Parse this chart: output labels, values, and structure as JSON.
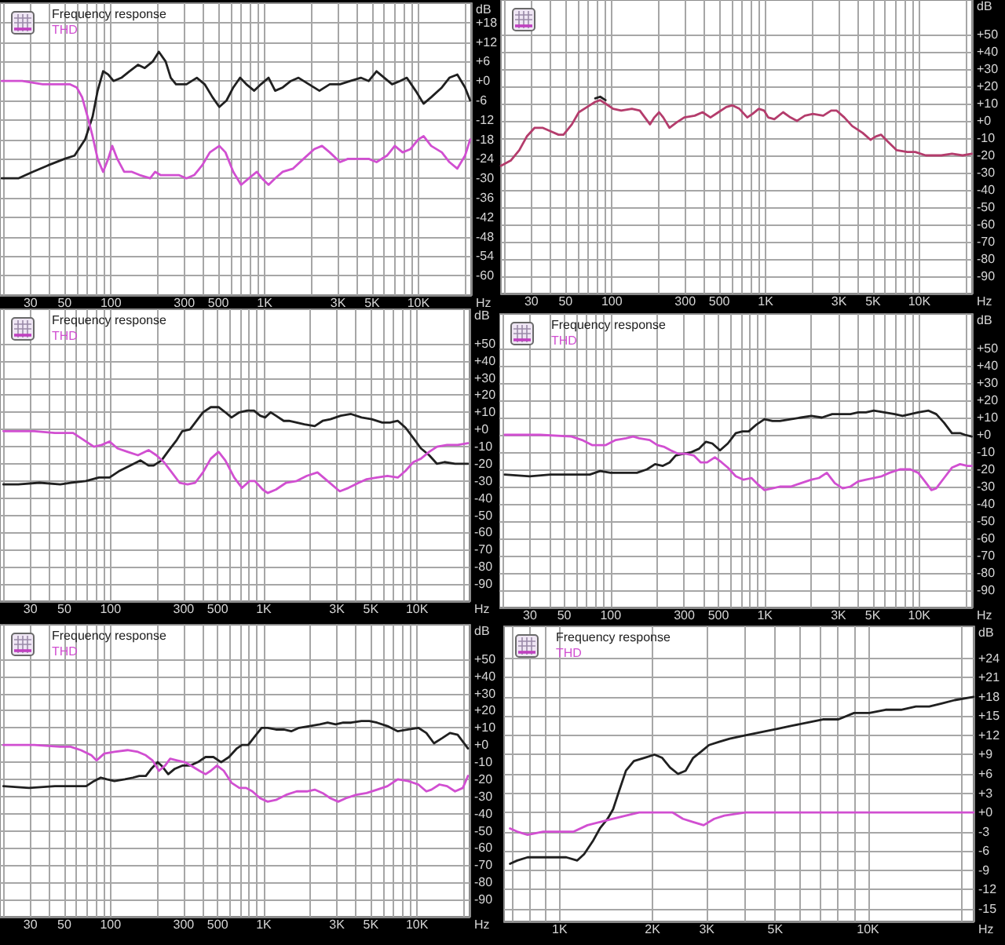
{
  "chart_data": [
    {
      "type": "line",
      "xlabel": "Hz",
      "ylabel": "dB",
      "log": "x",
      "grid": true,
      "legend": "top left",
      "marker": "none",
      "xlim": [
        19,
        22000
      ],
      "ylim": [
        -66,
        24
      ],
      "xticks": [
        {
          "value": 20,
          "label": null
        },
        30,
        {
          "value": 40,
          "label": null
        },
        50,
        {
          "value": 60,
          "label": null
        },
        {
          "value": 70,
          "label": null
        },
        {
          "value": 80,
          "label": null
        },
        {
          "value": 90,
          "label": null
        },
        100,
        {
          "value": 200,
          "label": null
        },
        300,
        {
          "value": 400,
          "label": null
        },
        500,
        {
          "value": 600,
          "label": null
        },
        {
          "value": 700,
          "label": null
        },
        {
          "value": 800,
          "label": null
        },
        {
          "value": 900,
          "label": null
        },
        {
          "value": 1000,
          "label": "1K"
        },
        {
          "value": 2000,
          "label": null
        },
        {
          "value": 3000,
          "label": "3K"
        },
        {
          "value": 4000,
          "label": null
        },
        {
          "value": 5000,
          "label": "5K"
        },
        {
          "value": 6000,
          "label": null
        },
        {
          "value": 7000,
          "label": null
        },
        {
          "value": 8000,
          "label": null
        },
        {
          "value": 9000,
          "label": null
        },
        {
          "value": 10000,
          "label": "10K"
        },
        {
          "value": 20000,
          "label": null
        }
      ],
      "yticks": [
        {
          "value": 18,
          "label": "+18"
        },
        {
          "value": 12,
          "label": "+12"
        },
        {
          "value": 6,
          "label": "+6"
        },
        {
          "value": 0,
          "label": "+0"
        },
        -6,
        -12,
        -18,
        -24,
        -30,
        -36,
        -42,
        -48,
        -54,
        -60
      ],
      "series": [
        {
          "name": "Frequency response",
          "color": "#202020",
          "x": [
            19.5,
            25,
            31,
            39,
            50,
            58,
            68,
            76,
            82,
            89,
            96,
            104,
            117,
            132,
            150,
            166,
            187,
            205,
            227,
            245,
            265,
            310,
            362,
            407,
            458,
            507,
            565,
            625,
            692,
            760,
            855,
            946,
            1060,
            1170,
            1310,
            1480,
            1660,
            1940,
            2270,
            2650,
            3090,
            3610,
            4220,
            4750,
            5340,
            6000,
            6740,
            7590,
            8400,
            9590,
            10800,
            12100,
            14200,
            15900,
            17900,
            20100,
            21700
          ],
          "values": [
            -30,
            -30,
            -28,
            -26,
            -24,
            -23,
            -18,
            -11,
            -3,
            3,
            2,
            0,
            1,
            3,
            5,
            4,
            6,
            9,
            6,
            1,
            -1,
            -1,
            1,
            -1,
            -5,
            -8,
            -6,
            -2,
            1,
            -1,
            -3,
            -1,
            1,
            -3,
            -2,
            0,
            1,
            -1,
            -3,
            -1,
            -1,
            0,
            1,
            0,
            3,
            1,
            -1,
            0,
            1,
            -3,
            -7,
            -5,
            -2,
            1,
            2,
            -2,
            -6
          ]
        },
        {
          "name": "THD",
          "color": "#d14fd1",
          "x": [
            19.5,
            26.5,
            36,
            54,
            60,
            65,
            70.5,
            76,
            82,
            89,
            96,
            102,
            110,
            122,
            137,
            154,
            180,
            194,
            210,
            236,
            276,
            310,
            348,
            392,
            440,
            507,
            556,
            625,
            703,
            790,
            889,
            960,
            1060,
            1170,
            1310,
            1530,
            1790,
            2100,
            2360,
            2650,
            3090,
            3480,
            4060,
            4750,
            5340,
            6240,
            7020,
            7890,
            8870,
            9980,
            10800,
            12100,
            14200,
            15900,
            17900,
            20100,
            21700
          ],
          "values": [
            0,
            0,
            -1,
            -1,
            -2,
            -5,
            -11,
            -17,
            -24,
            -28,
            -24,
            -20,
            -24,
            -28,
            -28,
            -29,
            -30,
            -28,
            -29,
            -29,
            -29,
            -30,
            -29,
            -26,
            -22,
            -20,
            -22,
            -28,
            -32,
            -30,
            -28,
            -30,
            -32,
            -30,
            -28,
            -27,
            -24,
            -21,
            -20,
            -22,
            -25,
            -24,
            -24,
            -24,
            -25,
            -23,
            -20,
            -22,
            -21,
            -18,
            -17,
            -20,
            -22,
            -25,
            -27,
            -23,
            -18
          ]
        }
      ]
    },
    {
      "type": "line",
      "xlabel": "Hz",
      "ylabel": "dB",
      "log": "x",
      "grid": true,
      "marker": "none",
      "xlim": [
        19,
        22000
      ],
      "ylim": [
        -100,
        70
      ],
      "xticks": [
        {
          "value": 20,
          "label": null
        },
        30,
        {
          "value": 40,
          "label": null
        },
        50,
        {
          "value": 60,
          "label": null
        },
        {
          "value": 70,
          "label": null
        },
        {
          "value": 80,
          "label": null
        },
        {
          "value": 90,
          "label": null
        },
        100,
        {
          "value": 200,
          "label": null
        },
        300,
        {
          "value": 400,
          "label": null
        },
        500,
        {
          "value": 600,
          "label": null
        },
        {
          "value": 700,
          "label": null
        },
        {
          "value": 800,
          "label": null
        },
        {
          "value": 900,
          "label": null
        },
        {
          "value": 1000,
          "label": "1K"
        },
        {
          "value": 2000,
          "label": null
        },
        {
          "value": 3000,
          "label": "3K"
        },
        {
          "value": 4000,
          "label": null
        },
        {
          "value": 5000,
          "label": "5K"
        },
        {
          "value": 6000,
          "label": null
        },
        {
          "value": 7000,
          "label": null
        },
        {
          "value": 8000,
          "label": null
        },
        {
          "value": 9000,
          "label": null
        },
        {
          "value": 10000,
          "label": "10K"
        },
        {
          "value": 20000,
          "label": null
        }
      ],
      "yticks": [
        {
          "value": 50,
          "label": "+50"
        },
        {
          "value": 40,
          "label": "+40"
        },
        {
          "value": 30,
          "label": "+30"
        },
        {
          "value": 20,
          "label": "+20"
        },
        {
          "value": 10,
          "label": "+10"
        },
        {
          "value": 0,
          "label": "+0"
        },
        -10,
        -20,
        -30,
        -40,
        -50,
        -60,
        -70,
        -80,
        -90
      ],
      "x": [
        19,
        22,
        25,
        28,
        31.5,
        35.4,
        40,
        45,
        48.5,
        55,
        61,
        69,
        78,
        84,
        91,
        102,
        115,
        135,
        152,
        164,
        177,
        189,
        203,
        216,
        237,
        263,
        296,
        346,
        389,
        438,
        493,
        555,
        609,
        675,
        760,
        822,
        903,
        977,
        1040,
        1140,
        1300,
        1450,
        1600,
        1800,
        2030,
        2370,
        2670,
        2890,
        3250,
        3660,
        4280,
        4820,
        5210,
        5630,
        6240,
        7130,
        8350,
        9400,
        11000,
        13900,
        16300,
        19100,
        21900
      ],
      "series": [
        {
          "color": "#b43c6c",
          "values": [
            -26,
            -23,
            -17,
            -9,
            -4,
            -4,
            -6,
            -8,
            -8,
            -2,
            5,
            8,
            11,
            12,
            10,
            7,
            6,
            7,
            6,
            2,
            -2,
            2,
            5,
            2,
            -4,
            -1,
            2,
            3,
            5,
            2,
            5,
            8,
            9,
            7,
            2,
            4,
            7,
            6,
            2,
            1,
            5,
            2,
            0,
            3,
            4,
            3,
            6,
            6,
            2,
            -3,
            -7,
            -11,
            -9,
            -8,
            -12,
            -17,
            -18,
            -18,
            -20,
            -20,
            -19,
            -20,
            -19
          ]
        },
        {
          "color": "#202020",
          "values": [
            null,
            null,
            null,
            null,
            null,
            null,
            null,
            null,
            null,
            null,
            null,
            null,
            13,
            14,
            12,
            null,
            null,
            null,
            null,
            null,
            null,
            null,
            null,
            null,
            null,
            null,
            null,
            null,
            null,
            null,
            null,
            null,
            null,
            null,
            null,
            null,
            null,
            null,
            null,
            null,
            null,
            null,
            null,
            null,
            null,
            null,
            null,
            null,
            null,
            null,
            null,
            null,
            null,
            null,
            null,
            null,
            null,
            null,
            null,
            null,
            null,
            null,
            null
          ]
        }
      ]
    },
    {
      "type": "line",
      "xlabel": "Hz",
      "ylabel": "dB",
      "log": "x",
      "grid": true,
      "legend": "top left",
      "marker": "none",
      "xlim": [
        19,
        22000
      ],
      "ylim": [
        -100,
        70
      ],
      "xticks": [
        {
          "value": 20,
          "label": null
        },
        30,
        {
          "value": 40,
          "label": null
        },
        50,
        {
          "value": 60,
          "label": null
        },
        {
          "value": 70,
          "label": null
        },
        {
          "value": 80,
          "label": null
        },
        {
          "value": 90,
          "label": null
        },
        100,
        {
          "value": 200,
          "label": null
        },
        300,
        {
          "value": 400,
          "label": null
        },
        500,
        {
          "value": 600,
          "label": null
        },
        {
          "value": 700,
          "label": null
        },
        {
          "value": 800,
          "label": null
        },
        {
          "value": 900,
          "label": null
        },
        {
          "value": 1000,
          "label": "1K"
        },
        {
          "value": 2000,
          "label": null
        },
        {
          "value": 3000,
          "label": "3K"
        },
        {
          "value": 4000,
          "label": null
        },
        {
          "value": 5000,
          "label": "5K"
        },
        {
          "value": 6000,
          "label": null
        },
        {
          "value": 7000,
          "label": null
        },
        {
          "value": 8000,
          "label": null
        },
        {
          "value": 9000,
          "label": null
        },
        {
          "value": 10000,
          "label": "10K"
        },
        {
          "value": 20000,
          "label": null
        }
      ],
      "yticks": [
        {
          "value": 50,
          "label": "+50"
        },
        {
          "value": 40,
          "label": "+40"
        },
        {
          "value": 30,
          "label": "+30"
        },
        {
          "value": 20,
          "label": "+20"
        },
        {
          "value": 10,
          "label": "+10"
        },
        {
          "value": 0,
          "label": "+0"
        },
        -10,
        -20,
        -30,
        -40,
        -50,
        -60,
        -70,
        -80,
        -90
      ],
      "series": [
        {
          "name": "Frequency response",
          "color": "#202020",
          "x": [
            20,
            25,
            34.4,
            47,
            55,
            69,
            84,
            98.5,
            115,
            134,
            157,
            177,
            191,
            215,
            241,
            271,
            294,
            330,
            357,
            401,
            451,
            507,
            561,
            616,
            693,
            779,
            863,
            947,
            1020,
            1110,
            1200,
            1350,
            1460,
            1640,
            1840,
            2150,
            2420,
            2720,
            3180,
            3710,
            4340,
            5070,
            5930,
            6660,
            7490,
            8420,
            9460,
            10600,
            12000,
            13500,
            15100,
            17700,
            21500
          ],
          "values": [
            -32,
            -32,
            -31,
            -32,
            -31,
            -30,
            -28,
            -28,
            -24,
            -21,
            -18,
            -21,
            -21,
            -18,
            -12,
            -6,
            -1,
            0,
            4,
            10,
            13,
            13,
            10,
            7,
            10,
            11,
            11,
            8,
            7,
            10,
            8,
            5,
            5,
            4,
            3,
            2,
            5,
            6,
            8,
            9,
            7,
            6,
            4,
            4,
            5,
            1,
            -5,
            -11,
            -15,
            -20,
            -19,
            -20,
            -20
          ]
        },
        {
          "name": "THD",
          "color": "#d14fd1",
          "x": [
            20,
            31.8,
            43.4,
            57,
            66.6,
            77.9,
            87.6,
            98.5,
            111,
            129,
            151,
            177,
            199,
            223,
            251,
            282,
            318,
            357,
            401,
            451,
            507,
            561,
            641,
            721,
            809,
            875,
            984,
            1060,
            1200,
            1400,
            1640,
            1910,
            2240,
            2610,
            3130,
            3570,
            4170,
            4690,
            5480,
            6410,
            7490,
            8420,
            9460,
            10600,
            12000,
            13500,
            15700,
            18400,
            21500
          ],
          "values": [
            -1,
            -1,
            -2,
            -2,
            -6,
            -10,
            -9,
            -7,
            -11,
            -13,
            -15,
            -12,
            -15,
            -19,
            -25,
            -31,
            -32,
            -31,
            -25,
            -17,
            -13,
            -18,
            -28,
            -34,
            -30,
            -30,
            -35,
            -37,
            -35,
            -31,
            -30,
            -27,
            -25,
            -30,
            -36,
            -34,
            -31,
            -29,
            -28,
            -27,
            -28,
            -24,
            -19,
            -17,
            -13,
            -10,
            -9,
            -9,
            -8
          ]
        }
      ]
    },
    {
      "type": "line",
      "xlabel": "Hz",
      "ylabel": "dB",
      "log": "x",
      "grid": true,
      "legend": "top left",
      "marker": "none",
      "xlim": [
        19,
        22000
      ],
      "ylim": [
        -100,
        70
      ],
      "xticks": [
        {
          "value": 20,
          "label": null
        },
        30,
        {
          "value": 40,
          "label": null
        },
        50,
        {
          "value": 60,
          "label": null
        },
        {
          "value": 70,
          "label": null
        },
        {
          "value": 80,
          "label": null
        },
        {
          "value": 90,
          "label": null
        },
        100,
        {
          "value": 200,
          "label": null
        },
        300,
        {
          "value": 400,
          "label": null
        },
        500,
        {
          "value": 600,
          "label": null
        },
        {
          "value": 700,
          "label": null
        },
        {
          "value": 800,
          "label": null
        },
        {
          "value": 900,
          "label": null
        },
        {
          "value": 1000,
          "label": "1K"
        },
        {
          "value": 2000,
          "label": null
        },
        {
          "value": 3000,
          "label": "3K"
        },
        {
          "value": 4000,
          "label": null
        },
        {
          "value": 5000,
          "label": "5K"
        },
        {
          "value": 6000,
          "label": null
        },
        {
          "value": 7000,
          "label": null
        },
        {
          "value": 8000,
          "label": null
        },
        {
          "value": 9000,
          "label": null
        },
        {
          "value": 10000,
          "label": "10K"
        },
        {
          "value": 20000,
          "label": null
        }
      ],
      "yticks": [
        {
          "value": 50,
          "label": "+50"
        },
        {
          "value": 40,
          "label": "+40"
        },
        {
          "value": 30,
          "label": "+30"
        },
        {
          "value": 20,
          "label": "+20"
        },
        {
          "value": 10,
          "label": "+10"
        },
        {
          "value": 0,
          "label": "+0"
        },
        -10,
        -20,
        -30,
        -40,
        -50,
        -60,
        -70,
        -80,
        -90
      ],
      "series": [
        {
          "name": "Frequency response",
          "color": "#202020",
          "x": [
            20.6,
            29.9,
            40.8,
            55.8,
            73.3,
            85.5,
            100,
            121,
            148,
            172,
            194,
            218,
            241,
            264,
            297,
            334,
            375,
            415,
            456,
            512,
            575,
            647,
            716,
            785,
            883,
            993,
            1120,
            1250,
            1470,
            1710,
            2000,
            2340,
            2730,
            3190,
            3580,
            4020,
            4520,
            5080,
            5940,
            6940,
            7800,
            8770,
            9850,
            11500,
            12900,
            14500,
            16300,
            18400,
            19800,
            21900
          ],
          "values": [
            -23,
            -24,
            -23,
            -23,
            -23,
            -21,
            -22,
            -22,
            -22,
            -20,
            -17,
            -18,
            -16,
            -12,
            -11,
            -10,
            -8,
            -4,
            -5,
            -9,
            -5,
            1,
            2,
            2,
            6,
            9,
            8,
            8,
            9,
            10,
            11,
            10,
            12,
            12,
            12,
            13,
            13,
            14,
            13,
            12,
            11,
            12,
            13,
            14,
            12,
            7,
            1,
            1,
            0,
            -1
          ]
        },
        {
          "name": "THD",
          "color": "#d14fd1",
          "x": [
            20.6,
            35,
            55.8,
            65.2,
            76.2,
            92.5,
            108,
            126,
            140,
            153,
            179,
            201,
            223,
            245,
            275,
            309,
            347,
            384,
            422,
            474,
            525,
            575,
            647,
            727,
            817,
            883,
            993,
            1120,
            1250,
            1470,
            1710,
            2000,
            2240,
            2520,
            2840,
            3190,
            3580,
            4020,
            4520,
            5080,
            5710,
            6420,
            7500,
            8770,
            9850,
            10900,
            12000,
            12900,
            14500,
            16300,
            18400,
            20600,
            21900
          ],
          "values": [
            0,
            0,
            -1,
            -3,
            -6,
            -6,
            -3,
            -2,
            -1,
            -2,
            -3,
            -6,
            -7,
            -9,
            -11,
            -11,
            -12,
            -16,
            -16,
            -13,
            -16,
            -19,
            -24,
            -26,
            -25,
            -28,
            -32,
            -31,
            -30,
            -30,
            -28,
            -26,
            -25,
            -22,
            -28,
            -31,
            -30,
            -27,
            -26,
            -25,
            -24,
            -22,
            -20,
            -20,
            -22,
            -27,
            -32,
            -31,
            -25,
            -19,
            -17,
            -18,
            -18
          ]
        }
      ]
    },
    {
      "type": "line",
      "xlabel": "Hz",
      "ylabel": "dB",
      "log": "x",
      "grid": true,
      "legend": "top left",
      "marker": "none",
      "xlim": [
        19,
        22000
      ],
      "ylim": [
        -100,
        70
      ],
      "xticks": [
        {
          "value": 20,
          "label": null
        },
        30,
        {
          "value": 40,
          "label": null
        },
        50,
        {
          "value": 60,
          "label": null
        },
        {
          "value": 70,
          "label": null
        },
        {
          "value": 80,
          "label": null
        },
        {
          "value": 90,
          "label": null
        },
        100,
        {
          "value": 200,
          "label": null
        },
        300,
        {
          "value": 400,
          "label": null
        },
        500,
        {
          "value": 600,
          "label": null
        },
        {
          "value": 700,
          "label": null
        },
        {
          "value": 800,
          "label": null
        },
        {
          "value": 900,
          "label": null
        },
        {
          "value": 1000,
          "label": "1K"
        },
        {
          "value": 2000,
          "label": null
        },
        {
          "value": 3000,
          "label": "3K"
        },
        {
          "value": 4000,
          "label": null
        },
        {
          "value": 5000,
          "label": "5K"
        },
        {
          "value": 6000,
          "label": null
        },
        {
          "value": 7000,
          "label": null
        },
        {
          "value": 8000,
          "label": null
        },
        {
          "value": 9000,
          "label": null
        },
        {
          "value": 10000,
          "label": "10K"
        },
        {
          "value": 20000,
          "label": null
        }
      ],
      "yticks": [
        {
          "value": 50,
          "label": "+50"
        },
        {
          "value": 40,
          "label": "+40"
        },
        {
          "value": 30,
          "label": "+30"
        },
        {
          "value": 20,
          "label": "+20"
        },
        {
          "value": 10,
          "label": "+10"
        },
        {
          "value": 0,
          "label": "+0"
        },
        -10,
        -20,
        -30,
        -40,
        -50,
        -60,
        -70,
        -80,
        -90
      ],
      "series": [
        {
          "name": "Frequency response",
          "color": "#202020",
          "x": [
            20,
            29.4,
            43.4,
            59.3,
            69.3,
            78,
            86.3,
            94.6,
            106,
            124,
            140,
            154,
            170,
            184,
            203,
            215,
            238,
            261,
            294,
            330,
            371,
            417,
            469,
            527,
            593,
            667,
            721,
            791,
            875,
            968,
            1060,
            1200,
            1350,
            1510,
            1700,
            1990,
            2320,
            2610,
            2940,
            3300,
            3710,
            4340,
            4880,
            5480,
            6410,
            7490,
            8750,
            10200,
            11500,
            12900,
            14600,
            16400,
            18400,
            19900,
            21500
          ],
          "values": [
            -24,
            -25,
            -24,
            -24,
            -24,
            -21,
            -19,
            -20,
            -21,
            -20,
            -19,
            -18,
            -18,
            -14,
            -10,
            -12,
            -17,
            -14,
            -12,
            -12,
            -10,
            -7,
            -7,
            -10,
            -7,
            -2,
            0,
            0,
            5,
            10,
            10,
            9,
            9,
            8,
            10,
            11,
            12,
            13,
            12,
            13,
            13,
            14,
            14,
            13,
            11,
            8,
            9,
            10,
            7,
            1,
            4,
            7,
            6,
            2,
            -2
          ]
        },
        {
          "name": "THD",
          "color": "#d14fd1",
          "x": [
            20,
            31.8,
            46.9,
            54.8,
            64.1,
            75,
            81,
            91,
            106,
            129,
            151,
            170,
            188,
            207,
            227,
            245,
            272,
            305,
            335,
            380,
            417,
            451,
            495,
            548,
            616,
            693,
            767,
            842,
            947,
            1060,
            1200,
            1400,
            1640,
            1910,
            2150,
            2420,
            2720,
            3060,
            3430,
            4010,
            4690,
            5480,
            6410,
            7490,
            8750,
            10200,
            11500,
            12400,
            14000,
            15700,
            17700,
            19900,
            21500
          ],
          "values": [
            0,
            0,
            -1,
            -1,
            -3,
            -6,
            -9,
            -5,
            -4,
            -3,
            -4,
            -6,
            -9,
            -15,
            -12,
            -8,
            -9,
            -10,
            -12,
            -15,
            -17,
            -15,
            -12,
            -15,
            -22,
            -25,
            -25,
            -27,
            -31,
            -33,
            -32,
            -29,
            -27,
            -27,
            -26,
            -28,
            -31,
            -33,
            -31,
            -29,
            -28,
            -26,
            -24,
            -20,
            -21,
            -23,
            -27,
            -26,
            -23,
            -24,
            -27,
            -25,
            -18
          ]
        }
      ]
    },
    {
      "type": "line",
      "xlabel": "Hz",
      "ylabel": "dB",
      "log": "x",
      "grid": true,
      "legend": "top left",
      "marker": "none",
      "xlim": [
        660,
        22000
      ],
      "ylim": [
        -17,
        29
      ],
      "xticks": [
        {
          "value": 700,
          "label": null
        },
        {
          "value": 800,
          "label": null
        },
        {
          "value": 900,
          "label": null
        },
        {
          "value": 1000,
          "label": "1K"
        },
        {
          "value": 2000,
          "label": "2K"
        },
        {
          "value": 3000,
          "label": "3K"
        },
        {
          "value": 4000,
          "label": null
        },
        {
          "value": 5000,
          "label": "5K"
        },
        {
          "value": 6000,
          "label": null
        },
        {
          "value": 7000,
          "label": null
        },
        {
          "value": 8000,
          "label": null
        },
        {
          "value": 9000,
          "label": null
        },
        {
          "value": 10000,
          "label": "10K"
        },
        {
          "value": 20000,
          "label": null
        }
      ],
      "yticks": [
        {
          "value": 24,
          "label": "+24"
        },
        {
          "value": 21,
          "label": "+21"
        },
        {
          "value": 18,
          "label": "+18"
        },
        {
          "value": 15,
          "label": "+15"
        },
        {
          "value": 12,
          "label": "+12"
        },
        {
          "value": 9,
          "label": "+9"
        },
        {
          "value": 6,
          "label": "+6"
        },
        {
          "value": 3,
          "label": "+3"
        },
        {
          "value": 0,
          "label": "+0"
        },
        -3,
        -6,
        -9,
        -12,
        -15
      ],
      "series": [
        {
          "name": "Frequency response",
          "color": "#202020",
          "x": [
            690,
            728,
            787,
            884,
            1000,
            1050,
            1140,
            1200,
            1280,
            1350,
            1430,
            1490,
            1550,
            1640,
            1740,
            1880,
            2030,
            2150,
            2280,
            2420,
            2560,
            2710,
            2880,
            3050,
            3290,
            3560,
            4000,
            4490,
            5040,
            5660,
            6360,
            7140,
            8020,
            9010,
            10100,
            11400,
            12800,
            14300,
            15800,
            17400,
            19100,
            22000
          ],
          "values": [
            -8,
            -7.5,
            -7,
            -7,
            -7,
            -7,
            -7.5,
            -6.5,
            -4.5,
            -2.5,
            -1,
            0.5,
            3,
            6.5,
            8,
            8.5,
            9,
            8.5,
            7,
            6,
            6.5,
            8.5,
            9.5,
            10.5,
            11,
            11.5,
            12,
            12.5,
            13,
            13.5,
            14,
            14.5,
            14.5,
            15.5,
            15.5,
            16,
            16,
            16.5,
            16.5,
            17,
            17.5,
            18
          ]
        },
        {
          "name": "THD",
          "color": "#d14fd1",
          "x": [
            690,
            728,
            787,
            884,
            1000,
            1110,
            1230,
            1350,
            1490,
            1640,
            1810,
            2030,
            2320,
            2510,
            2710,
            2930,
            3170,
            3420,
            4000,
            5450,
            8020,
            11800,
            17400,
            22000
          ],
          "values": [
            -2.5,
            -3,
            -3.5,
            -3,
            -3,
            -3,
            -2,
            -1.5,
            -1,
            -0.5,
            0,
            0,
            0,
            -1,
            -1.5,
            -2,
            -1,
            -0.5,
            0,
            0,
            0,
            0,
            0,
            0
          ]
        }
      ]
    }
  ]
}
